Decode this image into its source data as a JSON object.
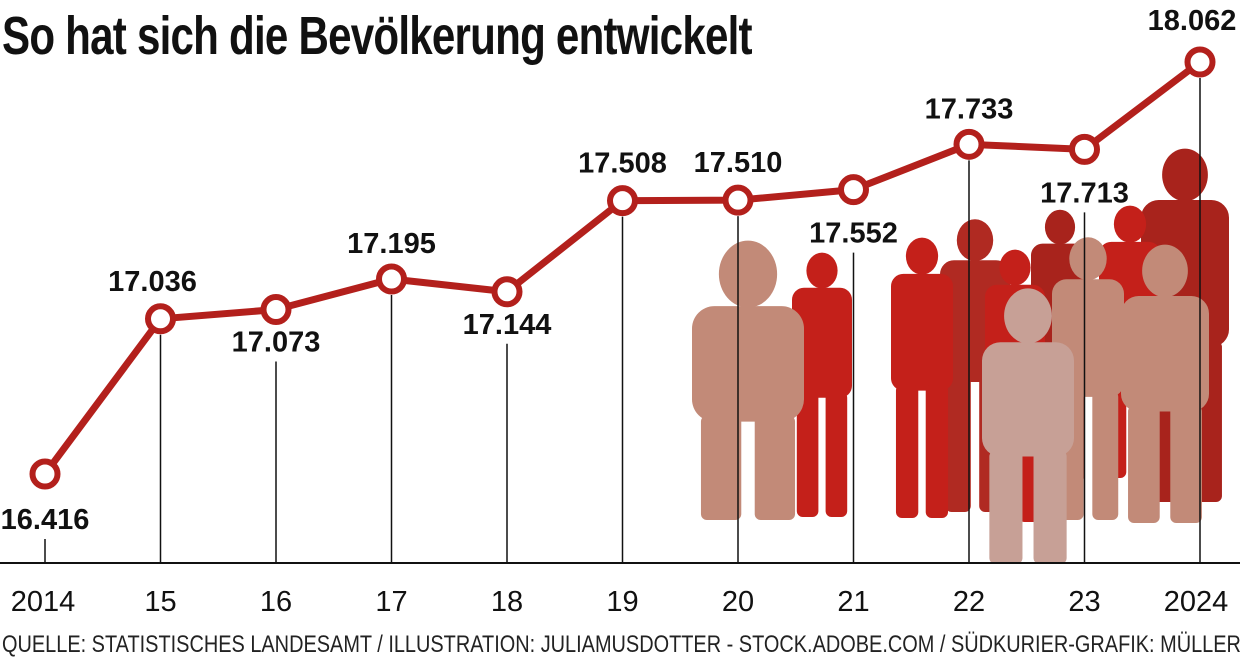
{
  "header": {
    "title": "So hat sich die Bevölkerung entwickelt"
  },
  "footer": {
    "source": "QUELLE: STATISTISCHES LANDESAMT / ILLUSTRATION: JULIAMUSDOTTER - STOCK.ADOBE.COM / SÜDKURIER-GRAFIK: MÜLLER"
  },
  "colors": {
    "line": "#b3201c",
    "marker_fill": "#ffffff",
    "people": [
      "#c28a78",
      "#c4201a",
      "#a8231c",
      "#b02a22",
      "#c7a096"
    ]
  },
  "illustration": "people-silhouettes-icon",
  "chart_data": {
    "type": "line",
    "x": [
      2014,
      2015,
      2016,
      2017,
      2018,
      2019,
      2020,
      2021,
      2022,
      2023,
      2024
    ],
    "tick_labels": [
      "2014",
      "15",
      "16",
      "17",
      "18",
      "19",
      "20",
      "21",
      "22",
      "23",
      "2024"
    ],
    "values": [
      16416,
      17036,
      17073,
      17195,
      17144,
      17508,
      17510,
      17552,
      17733,
      17713,
      18062
    ],
    "data_labels": [
      "16.416",
      "17.036",
      "17.073",
      "17.195",
      "17.144",
      "17.508",
      "17.510",
      "17.552",
      "17.733",
      "17.713",
      "18.062"
    ],
    "grid": false,
    "legend": "none"
  }
}
